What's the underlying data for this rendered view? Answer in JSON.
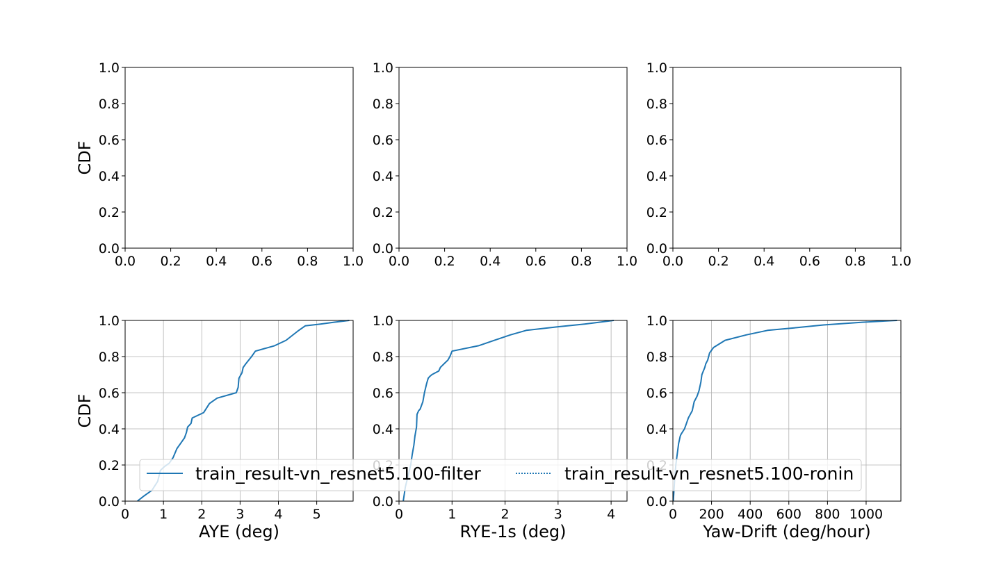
{
  "colors": {
    "series": "#1f77b4",
    "grid": "#b0b0b0",
    "axes": "#000000",
    "legend_border": "#cccccc"
  },
  "legend": {
    "location": "lower center, spanning bottom row",
    "entries": [
      {
        "label": "train_result-vn_resnet5.100-filter",
        "style": "solid"
      },
      {
        "label": "train_result-vn_resnet5.100-ronin",
        "style": "dotted"
      }
    ]
  },
  "chart_data": [
    {
      "type": "line",
      "row": 1,
      "col": 1,
      "xlabel": "",
      "ylabel": "CDF",
      "xlim": [
        0,
        1
      ],
      "ylim": [
        0,
        1
      ],
      "grid": false,
      "xticks": [
        0.0,
        0.2,
        0.4,
        0.6,
        0.8,
        1.0
      ],
      "yticks": [
        0.0,
        0.2,
        0.4,
        0.6,
        0.8,
        1.0
      ],
      "xtick_labels": [
        "0.0",
        "0.2",
        "0.4",
        "0.6",
        "0.8",
        "1.0"
      ],
      "ytick_labels": [
        "0.0",
        "0.2",
        "0.4",
        "0.6",
        "0.8",
        "1.0"
      ],
      "series": []
    },
    {
      "type": "line",
      "row": 1,
      "col": 2,
      "xlabel": "",
      "ylabel": "",
      "xlim": [
        0,
        1
      ],
      "ylim": [
        0,
        1
      ],
      "grid": false,
      "xticks": [
        0.0,
        0.2,
        0.4,
        0.6,
        0.8,
        1.0
      ],
      "yticks": [
        0.0,
        0.2,
        0.4,
        0.6,
        0.8,
        1.0
      ],
      "xtick_labels": [
        "0.0",
        "0.2",
        "0.4",
        "0.6",
        "0.8",
        "1.0"
      ],
      "ytick_labels": [
        "0.0",
        "0.2",
        "0.4",
        "0.6",
        "0.8",
        "1.0"
      ],
      "series": []
    },
    {
      "type": "line",
      "row": 1,
      "col": 3,
      "xlabel": "",
      "ylabel": "",
      "xlim": [
        0,
        1
      ],
      "ylim": [
        0,
        1
      ],
      "grid": false,
      "xticks": [
        0.0,
        0.2,
        0.4,
        0.6,
        0.8,
        1.0
      ],
      "yticks": [
        0.0,
        0.2,
        0.4,
        0.6,
        0.8,
        1.0
      ],
      "xtick_labels": [
        "0.0",
        "0.2",
        "0.4",
        "0.6",
        "0.8",
        "1.0"
      ],
      "ytick_labels": [
        "0.0",
        "0.2",
        "0.4",
        "0.6",
        "0.8",
        "1.0"
      ],
      "series": []
    },
    {
      "type": "line",
      "row": 2,
      "col": 1,
      "xlabel": "AYE (deg)",
      "ylabel": "CDF",
      "xlim": [
        0,
        5.95
      ],
      "ylim": [
        0,
        1
      ],
      "grid": true,
      "xticks": [
        0,
        1,
        2,
        3,
        4,
        5
      ],
      "yticks": [
        0.0,
        0.2,
        0.4,
        0.6,
        0.8,
        1.0
      ],
      "xtick_labels": [
        "0",
        "1",
        "2",
        "3",
        "4",
        "5"
      ],
      "ytick_labels": [
        "0.0",
        "0.2",
        "0.4",
        "0.6",
        "0.8",
        "1.0"
      ],
      "series": [
        {
          "name": "train_result-vn_resnet5.100-filter",
          "style": "solid",
          "x": [
            0.32,
            0.5,
            0.7,
            0.85,
            0.92,
            1.02,
            1.15,
            1.25,
            1.35,
            1.45,
            1.55,
            1.6,
            1.63,
            1.72,
            1.75,
            2.05,
            2.2,
            2.4,
            2.9,
            2.95,
            2.97,
            3.05,
            3.08,
            3.15,
            3.3,
            3.4,
            3.9,
            4.2,
            4.5,
            4.7,
            5.1,
            5.45,
            5.85
          ],
          "y": [
            0.0,
            0.03,
            0.06,
            0.11,
            0.17,
            0.19,
            0.21,
            0.24,
            0.29,
            0.32,
            0.35,
            0.38,
            0.41,
            0.43,
            0.46,
            0.49,
            0.54,
            0.57,
            0.6,
            0.63,
            0.68,
            0.71,
            0.74,
            0.76,
            0.8,
            0.83,
            0.86,
            0.89,
            0.94,
            0.97,
            0.98,
            0.99,
            1.0
          ]
        },
        {
          "name": "train_result-vn_resnet5.100-ronin",
          "style": "dotted",
          "x": [],
          "y": []
        }
      ]
    },
    {
      "type": "line",
      "row": 2,
      "col": 2,
      "xlabel": "RYE-1s (deg)",
      "ylabel": "",
      "xlim": [
        0,
        4.3
      ],
      "ylim": [
        0,
        1
      ],
      "grid": true,
      "xticks": [
        0,
        1,
        2,
        3,
        4
      ],
      "yticks": [
        0.0,
        0.2,
        0.4,
        0.6,
        0.8,
        1.0
      ],
      "xtick_labels": [
        "0",
        "1",
        "2",
        "3",
        "4"
      ],
      "ytick_labels": [
        "0.0",
        "0.2",
        "0.4",
        "0.6",
        "0.8",
        "1.0"
      ],
      "series": [
        {
          "name": "train_result-vn_resnet5.100-filter",
          "style": "solid",
          "x": [
            0.08,
            0.12,
            0.18,
            0.22,
            0.25,
            0.28,
            0.3,
            0.33,
            0.34,
            0.37,
            0.4,
            0.45,
            0.48,
            0.52,
            0.55,
            0.58,
            0.62,
            0.75,
            0.78,
            0.85,
            0.92,
            0.96,
            1.0,
            1.5,
            1.8,
            2.1,
            2.4,
            3.0,
            3.5,
            4.05
          ],
          "y": [
            0.0,
            0.08,
            0.15,
            0.2,
            0.26,
            0.31,
            0.36,
            0.41,
            0.48,
            0.5,
            0.51,
            0.55,
            0.6,
            0.65,
            0.68,
            0.69,
            0.7,
            0.72,
            0.74,
            0.76,
            0.78,
            0.8,
            0.83,
            0.86,
            0.89,
            0.92,
            0.945,
            0.965,
            0.98,
            1.0
          ]
        },
        {
          "name": "train_result-vn_resnet5.100-ronin",
          "style": "dotted",
          "x": [],
          "y": []
        }
      ]
    },
    {
      "type": "line",
      "row": 2,
      "col": 3,
      "xlabel": "Yaw-Drift (deg/hour)",
      "ylabel": "",
      "xlim": [
        0,
        1180
      ],
      "ylim": [
        0,
        1
      ],
      "grid": true,
      "xticks": [
        0,
        200,
        400,
        600,
        800,
        1000
      ],
      "yticks": [
        0.0,
        0.2,
        0.4,
        0.6,
        0.8,
        1.0
      ],
      "xtick_labels": [
        "0",
        "200",
        "400",
        "600",
        "800",
        "1000"
      ],
      "ytick_labels": [
        "0.0",
        "0.2",
        "0.4",
        "0.6",
        "0.8",
        "1.0"
      ],
      "series": [
        {
          "name": "train_result-vn_resnet5.100-filter",
          "style": "solid",
          "x": [
            2,
            8,
            15,
            25,
            30,
            38,
            42,
            60,
            70,
            80,
            90,
            100,
            110,
            125,
            135,
            145,
            150,
            165,
            170,
            180,
            190,
            210,
            270,
            380,
            490,
            640,
            780,
            980,
            1160
          ],
          "y": [
            0.0,
            0.1,
            0.2,
            0.28,
            0.32,
            0.36,
            0.37,
            0.4,
            0.43,
            0.46,
            0.48,
            0.5,
            0.55,
            0.58,
            0.61,
            0.66,
            0.7,
            0.74,
            0.76,
            0.78,
            0.82,
            0.85,
            0.89,
            0.92,
            0.945,
            0.96,
            0.975,
            0.99,
            1.0
          ]
        },
        {
          "name": "train_result-vn_resnet5.100-ronin",
          "style": "dotted",
          "x": [],
          "y": []
        }
      ]
    }
  ]
}
